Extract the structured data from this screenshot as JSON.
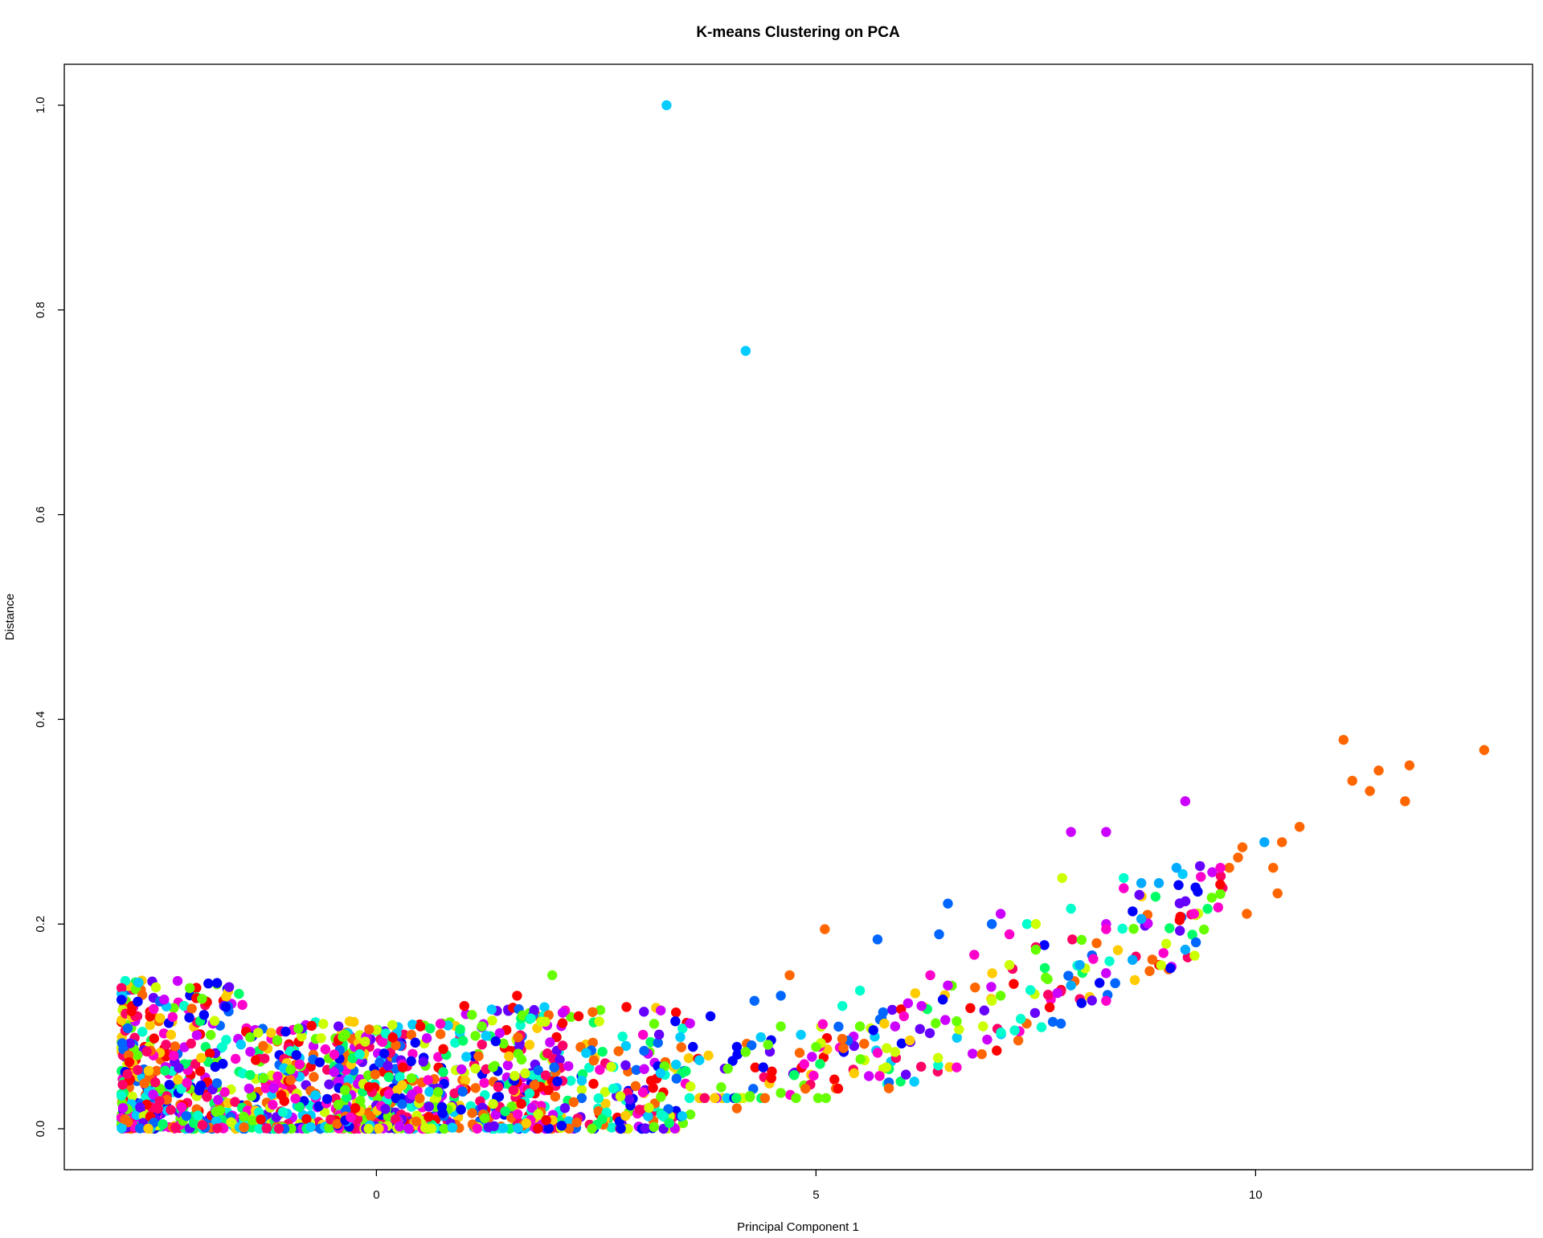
{
  "chart_data": {
    "type": "scatter",
    "title": "K-means Clustering on PCA",
    "xlabel": "Principal Component 1",
    "ylabel": "Distance",
    "xlim": [
      -3.55,
      13.15
    ],
    "ylim": [
      -0.04,
      1.04
    ],
    "x_ticks": [
      0,
      5,
      10
    ],
    "y_ticks": [
      0.0,
      0.2,
      0.4,
      0.6,
      0.8,
      1.0
    ],
    "x_tick_labels": [
      "0",
      "5",
      "10"
    ],
    "y_tick_labels": [
      "0.0",
      "0.2",
      "0.4",
      "0.6",
      "0.8",
      "1.0"
    ],
    "grid": false,
    "legend": "none",
    "palette": [
      "#ff0000",
      "#ff6600",
      "#ffcc00",
      "#ccff00",
      "#66ff00",
      "#00ff66",
      "#00ffcc",
      "#00ccff",
      "#0066ff",
      "#0000ff",
      "#6600ff",
      "#cc00ff",
      "#ff00cc",
      "#ff0066"
    ],
    "series": [
      {
        "color": "#00ccff",
        "points": [
          [
            3.3,
            1.0
          ],
          [
            4.2,
            0.76
          ]
        ]
      },
      {
        "color": "#ff6600",
        "points": [
          [
            11.0,
            0.38
          ],
          [
            11.1,
            0.34
          ],
          [
            11.3,
            0.33
          ],
          [
            11.4,
            0.35
          ],
          [
            11.7,
            0.32
          ],
          [
            11.75,
            0.355
          ],
          [
            12.6,
            0.37
          ],
          [
            10.5,
            0.295
          ],
          [
            10.3,
            0.28
          ],
          [
            10.2,
            0.255
          ],
          [
            10.25,
            0.23
          ],
          [
            9.9,
            0.21
          ],
          [
            9.8,
            0.265
          ],
          [
            9.85,
            0.275
          ],
          [
            9.7,
            0.255
          ],
          [
            5.1,
            0.195
          ],
          [
            4.7,
            0.15
          ],
          [
            4.1,
            0.02
          ]
        ]
      },
      {
        "color": "#cc00ff",
        "points": [
          [
            7.9,
            0.29
          ],
          [
            8.3,
            0.29
          ],
          [
            9.2,
            0.32
          ],
          [
            8.3,
            0.2
          ],
          [
            7.1,
            0.21
          ],
          [
            6.5,
            0.14
          ],
          [
            6.2,
            0.12
          ],
          [
            5.9,
            0.1
          ]
        ]
      },
      {
        "color": "#ff00cc",
        "points": [
          [
            9.6,
            0.255
          ],
          [
            9.3,
            0.21
          ],
          [
            8.5,
            0.235
          ],
          [
            8.3,
            0.195
          ],
          [
            7.2,
            0.19
          ],
          [
            6.8,
            0.17
          ],
          [
            6.3,
            0.15
          ],
          [
            6.0,
            0.11
          ],
          [
            8.3,
            0.125
          ],
          [
            6.6,
            0.06
          ]
        ]
      },
      {
        "color": "#00aaff",
        "points": [
          [
            10.1,
            0.28
          ],
          [
            9.1,
            0.255
          ],
          [
            8.7,
            0.24
          ],
          [
            8.9,
            0.24
          ],
          [
            8.7,
            0.205
          ],
          [
            9.2,
            0.175
          ],
          [
            8.0,
            0.16
          ],
          [
            7.9,
            0.14
          ],
          [
            8.6,
            0.165
          ]
        ]
      },
      {
        "color": "#0066ff",
        "points": [
          [
            6.5,
            0.22
          ],
          [
            6.4,
            0.19
          ],
          [
            5.7,
            0.185
          ],
          [
            7.0,
            0.2
          ],
          [
            4.6,
            0.13
          ],
          [
            4.3,
            0.125
          ]
        ]
      },
      {
        "color": "#00ffcc",
        "points": [
          [
            8.5,
            0.245
          ],
          [
            7.9,
            0.215
          ],
          [
            7.4,
            0.2
          ],
          [
            5.5,
            0.135
          ],
          [
            5.3,
            0.12
          ]
        ]
      },
      {
        "color": "#ccff00",
        "points": [
          [
            7.8,
            0.245
          ],
          [
            7.5,
            0.2
          ],
          [
            7.2,
            0.16
          ],
          [
            7.0,
            0.125
          ],
          [
            6.9,
            0.1
          ],
          [
            5.9,
            0.075
          ],
          [
            5.8,
            0.06
          ]
        ]
      },
      {
        "color": "#66ff00",
        "points": [
          [
            7.5,
            0.175
          ],
          [
            7.1,
            0.13
          ],
          [
            6.6,
            0.105
          ],
          [
            5.5,
            0.1
          ],
          [
            5.0,
            0.08
          ],
          [
            4.6,
            0.1
          ],
          [
            4.2,
            0.075
          ],
          [
            4.6,
            0.035
          ],
          [
            2.0,
            0.15
          ],
          [
            1.2,
            0.1
          ]
        ]
      },
      {
        "color": "#ff0000",
        "points": [
          [
            1.6,
            0.13
          ],
          [
            1.0,
            0.12
          ],
          [
            0.5,
            0.1
          ],
          [
            0.3,
            0.06
          ],
          [
            2.3,
            0.11
          ]
        ]
      },
      {
        "color": "#0000ff",
        "points": [
          [
            3.4,
            0.105
          ],
          [
            3.8,
            0.11
          ],
          [
            4.1,
            0.08
          ],
          [
            4.4,
            0.06
          ],
          [
            3.6,
            0.08
          ]
        ]
      }
    ],
    "dense_cluster": {
      "note_free": true,
      "x_range": [
        -2.9,
        3.6
      ],
      "y_range": [
        0.0,
        0.145
      ]
    }
  }
}
